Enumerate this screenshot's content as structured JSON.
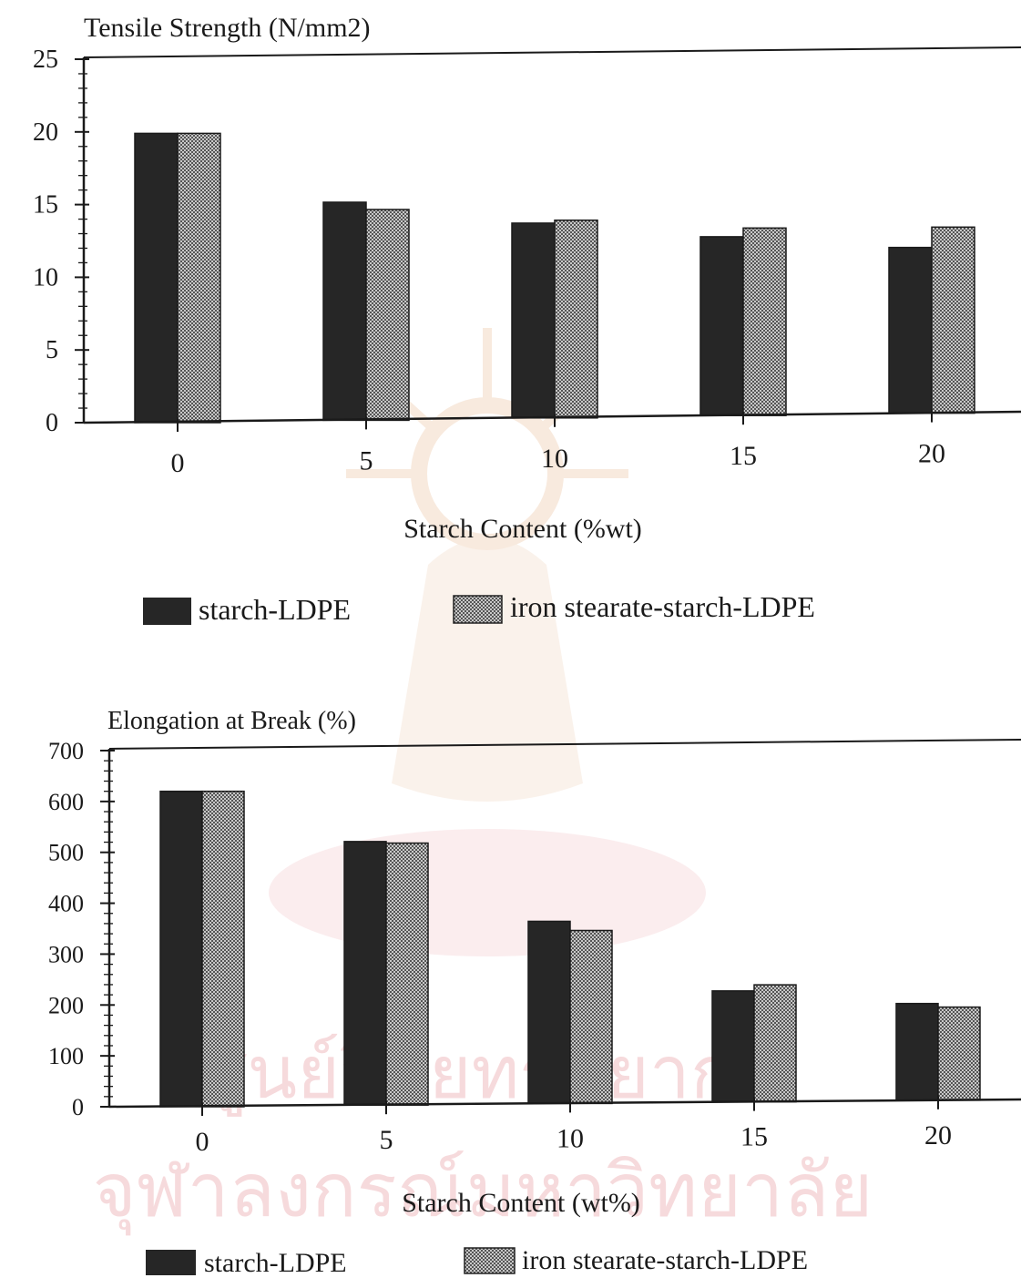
{
  "watermark": {
    "color": "#f2d9c4",
    "pink": "#f6d6d9",
    "line1": "ศูนย์วิทยทรัพยากร",
    "line2": "จุฬาลงกรณ์มหาวิทยาลัย"
  },
  "colors": {
    "series_dark": "#262626",
    "series_hatched": "#9e9e9e"
  },
  "chart_data": [
    {
      "type": "bar",
      "title": "Tensile Strength (N/mm2)",
      "xlabel": "Starch Content (%wt)",
      "ylabel": "",
      "categories": [
        "0",
        "5",
        "10",
        "15",
        "20"
      ],
      "yticks": [
        "0",
        "5",
        "10",
        "15",
        "20",
        "25"
      ],
      "ylim": [
        0,
        25
      ],
      "series": [
        {
          "name": "starch-LDPE",
          "values": [
            19.9,
            15.0,
            13.4,
            12.3,
            11.4
          ]
        },
        {
          "name": "iron stearate-starch-LDPE",
          "values": [
            19.9,
            14.5,
            13.6,
            12.9,
            12.8
          ]
        }
      ],
      "legend": "bottom"
    },
    {
      "type": "bar",
      "title": "Elongation at Break (%)",
      "xlabel": "Starch Content (wt%)",
      "ylabel": "",
      "categories": [
        "0",
        "5",
        "10",
        "15",
        "20"
      ],
      "yticks": [
        "0",
        "100",
        "200",
        "300",
        "400",
        "500",
        "600",
        "700"
      ],
      "ylim": [
        0,
        700
      ],
      "series": [
        {
          "name": "starch-LDPE",
          "values": [
            620,
            518,
            358,
            218,
            190
          ]
        },
        {
          "name": "iron stearate-starch-LDPE",
          "values": [
            620,
            515,
            340,
            230,
            183
          ]
        }
      ],
      "legend": "bottom"
    }
  ]
}
